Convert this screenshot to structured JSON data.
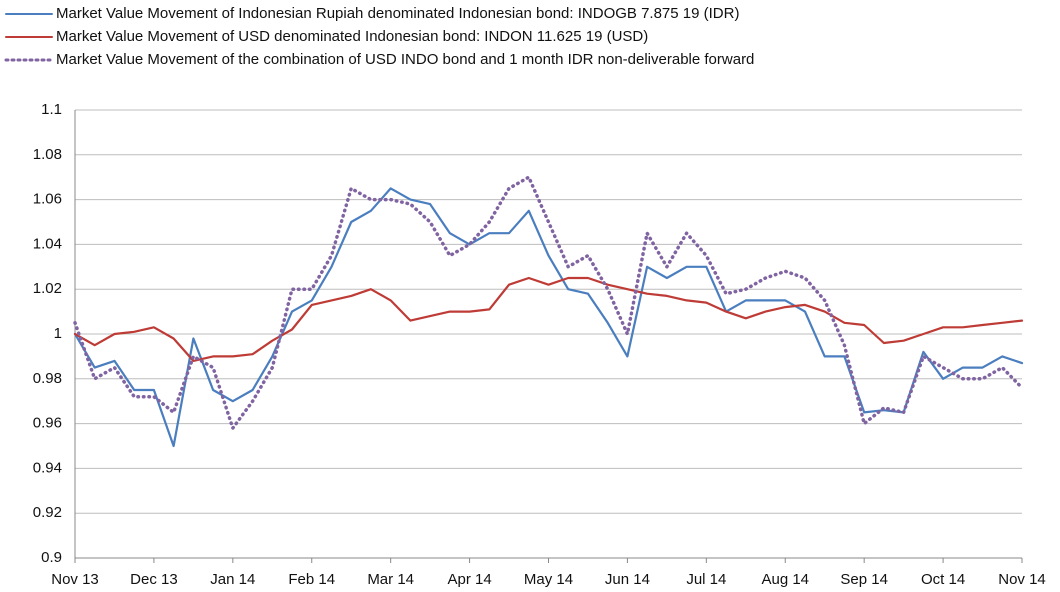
{
  "chart_data": {
    "type": "line",
    "categories": [
      "Nov 13",
      null,
      null,
      null,
      "Dec 13",
      null,
      null,
      null,
      "Jan 14",
      null,
      null,
      null,
      "Feb 14",
      null,
      null,
      null,
      "Mar 14",
      null,
      null,
      null,
      "Apr 14",
      null,
      null,
      null,
      "May 14",
      null,
      null,
      null,
      "Jun 14",
      null,
      null,
      null,
      "Jul 14",
      null,
      null,
      null,
      "Aug 14",
      null,
      null,
      null,
      "Sep 14",
      null,
      null,
      null,
      "Oct 14",
      null,
      null,
      null,
      "Nov 14"
    ],
    "series": [
      {
        "name": "Market Value Movement of Indonesian Rupiah denominated Indonesian bond: INDOGB 7.875 19 (IDR)",
        "color": "#4a7ebf",
        "dash": "solid",
        "values": [
          1.0,
          0.985,
          0.988,
          0.975,
          0.975,
          0.95,
          0.998,
          0.975,
          0.97,
          0.975,
          0.99,
          1.01,
          1.015,
          1.03,
          1.05,
          1.055,
          1.065,
          1.06,
          1.058,
          1.045,
          1.04,
          1.045,
          1.045,
          1.055,
          1.035,
          1.02,
          1.018,
          1.005,
          0.99,
          1.03,
          1.025,
          1.03,
          1.03,
          1.01,
          1.015,
          1.015,
          1.015,
          1.01,
          0.99,
          0.99,
          0.965,
          0.966,
          0.965,
          0.992,
          0.98,
          0.985,
          0.985,
          0.99,
          0.987
        ]
      },
      {
        "name": "Market Value Movement of USD denominated Indonesian bond: INDON 11.625 19 (USD)",
        "color": "#be3b36",
        "dash": "solid",
        "values": [
          1.0,
          0.995,
          1.0,
          1.001,
          1.003,
          0.998,
          0.988,
          0.99,
          0.99,
          0.991,
          0.997,
          1.002,
          1.013,
          1.015,
          1.017,
          1.02,
          1.015,
          1.006,
          1.008,
          1.01,
          1.01,
          1.011,
          1.022,
          1.025,
          1.022,
          1.025,
          1.025,
          1.022,
          1.02,
          1.018,
          1.017,
          1.015,
          1.014,
          1.01,
          1.007,
          1.01,
          1.012,
          1.013,
          1.01,
          1.005,
          1.004,
          0.996,
          0.997,
          1.0,
          1.003,
          1.003,
          1.004,
          1.005,
          1.006
        ]
      },
      {
        "name": "Market Value  Movement of the combination of USD INDO bond and 1 month IDR non-deliverable forward",
        "color": "#8064a2",
        "dash": "dotted",
        "values": [
          1.005,
          0.98,
          0.985,
          0.972,
          0.972,
          0.965,
          0.99,
          0.985,
          0.958,
          0.97,
          0.985,
          1.02,
          1.02,
          1.035,
          1.065,
          1.06,
          1.06,
          1.058,
          1.05,
          1.035,
          1.04,
          1.05,
          1.065,
          1.07,
          1.05,
          1.03,
          1.035,
          1.02,
          1.0,
          1.045,
          1.03,
          1.045,
          1.035,
          1.018,
          1.02,
          1.025,
          1.028,
          1.025,
          1.015,
          0.995,
          0.96,
          0.967,
          0.965,
          0.99,
          0.985,
          0.98,
          0.98,
          0.985,
          0.976
        ]
      }
    ],
    "ylim": [
      0.9,
      1.1
    ],
    "yticks": [
      0.9,
      0.92,
      0.94,
      0.96,
      0.98,
      1,
      1.02,
      1.04,
      1.06,
      1.08,
      1.1
    ],
    "grid": true
  }
}
